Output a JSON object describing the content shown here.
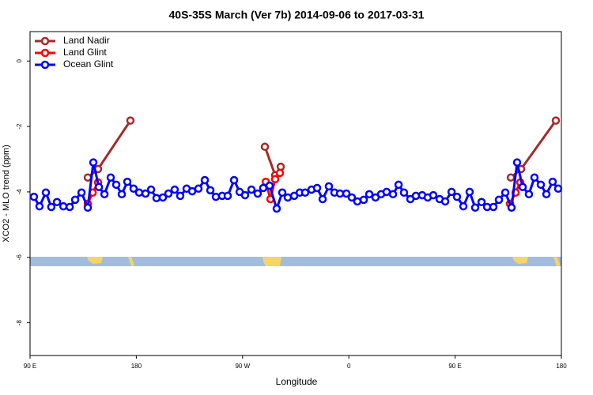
{
  "chart_data": {
    "type": "line",
    "title": "40S-35S March (Ver 7b)   2014-09-06 to 2017-03-31",
    "x_label": "Longitude",
    "y_label": "XCO2 - MLO trend (ppm)",
    "xlim": [
      90,
      540
    ],
    "ylim": [
      -9,
      0.9
    ],
    "xticks": [
      {
        "value": 90,
        "label": "90 E"
      },
      {
        "value": 180,
        "label": "180"
      },
      {
        "value": 270,
        "label": "90 W"
      },
      {
        "value": 360,
        "label": "0"
      },
      {
        "value": 450,
        "label": "90 E"
      },
      {
        "value": 540,
        "label": "180"
      }
    ],
    "yticks": [
      0,
      -2,
      -4,
      -6,
      -8
    ],
    "legend": "top-left",
    "series": [
      {
        "name": "Land Nadir",
        "color": "#a52a2a",
        "x": [
          138.9,
          147.6,
          175,
          null,
          288.9,
          297.6,
          302.3,
          null,
          497.2,
          505.9,
          535.3
        ],
        "values": [
          -3.56,
          -3.3,
          -1.82,
          null,
          -2.62,
          -3.49,
          -3.23,
          null,
          -3.56,
          -3.3,
          -1.82
        ]
      },
      {
        "name": "Land Glint",
        "color": "#ff0000",
        "x": [
          138.9,
          143,
          147.6,
          null,
          289.6,
          293.6,
          297.6,
          301.6,
          null,
          496.5,
          501.2,
          505.2
        ],
        "values": [
          -4.36,
          -4.02,
          -3.71,
          null,
          -3.69,
          -4.22,
          -3.61,
          -3.42,
          null,
          -4.36,
          -4.02,
          -3.71
        ]
      },
      {
        "name": "Ocean Glint",
        "color": "#0000ff",
        "x": [
          93.3,
          98,
          103.4,
          108,
          112.8,
          118.2,
          123.6,
          128.2,
          133.6,
          138.9,
          143.6,
          148.3,
          153,
          158.3,
          163,
          167.7,
          172.4,
          177.7,
          182.4,
          187.8,
          192.5,
          197.1,
          202.5,
          207.2,
          212.5,
          217.2,
          222.6,
          227.3,
          232.6,
          238,
          242.7,
          247.4,
          252.7,
          257.4,
          262.8,
          267.5,
          272.1,
          277.5,
          282.8,
          287.5,
          292.9,
          298.9,
          303.6,
          308.3,
          313.7,
          318.4,
          323,
          328.4,
          333.1,
          337.8,
          343.1,
          347.8,
          352.5,
          357.9,
          362.5,
          367.2,
          372.6,
          377.3,
          382.6,
          387.3,
          392,
          397.4,
          402.1,
          406.7,
          412.1,
          416.8,
          422.1,
          426.8,
          431.5,
          436.9,
          441.6,
          447,
          451.6,
          457,
          462.3,
          467,
          472.4,
          477.1,
          482.4,
          487.1,
          492.5,
          497.8,
          502.5,
          507.2,
          512.5,
          517.2,
          522.6,
          527.3,
          532.6,
          537.3
        ],
        "values": [
          -4.15,
          -4.44,
          -4.02,
          -4.46,
          -4.31,
          -4.44,
          -4.46,
          -4.24,
          -4.02,
          -4.48,
          -3.1,
          -3.85,
          -4.07,
          -3.56,
          -3.78,
          -4.07,
          -3.69,
          -3.9,
          -4.02,
          -4.05,
          -3.93,
          -4.19,
          -4.17,
          -4.05,
          -3.93,
          -4.12,
          -3.9,
          -3.98,
          -3.9,
          -3.64,
          -3.95,
          -4.15,
          -4.12,
          -4.12,
          -3.64,
          -4,
          -4.1,
          -3.93,
          -4.05,
          -3.88,
          -3.81,
          -4.51,
          -4.02,
          -4.17,
          -4.12,
          -4.02,
          -4.02,
          -3.93,
          -3.88,
          -4.22,
          -3.83,
          -4.02,
          -4.05,
          -4.05,
          -4.17,
          -4.29,
          -4.24,
          -4.07,
          -4.17,
          -4.07,
          -4,
          -4.07,
          -3.78,
          -4.02,
          -4.22,
          -4.12,
          -4.1,
          -4.17,
          -4.1,
          -4.22,
          -4.29,
          -4,
          -4.15,
          -4.44,
          -4,
          -4.48,
          -4.31,
          -4.46,
          -4.46,
          -4.24,
          -4.02,
          -4.48,
          -3.1,
          -3.85,
          -4.07,
          -3.56,
          -3.78,
          -4.07,
          -3.69,
          -3.9
        ]
      }
    ]
  }
}
